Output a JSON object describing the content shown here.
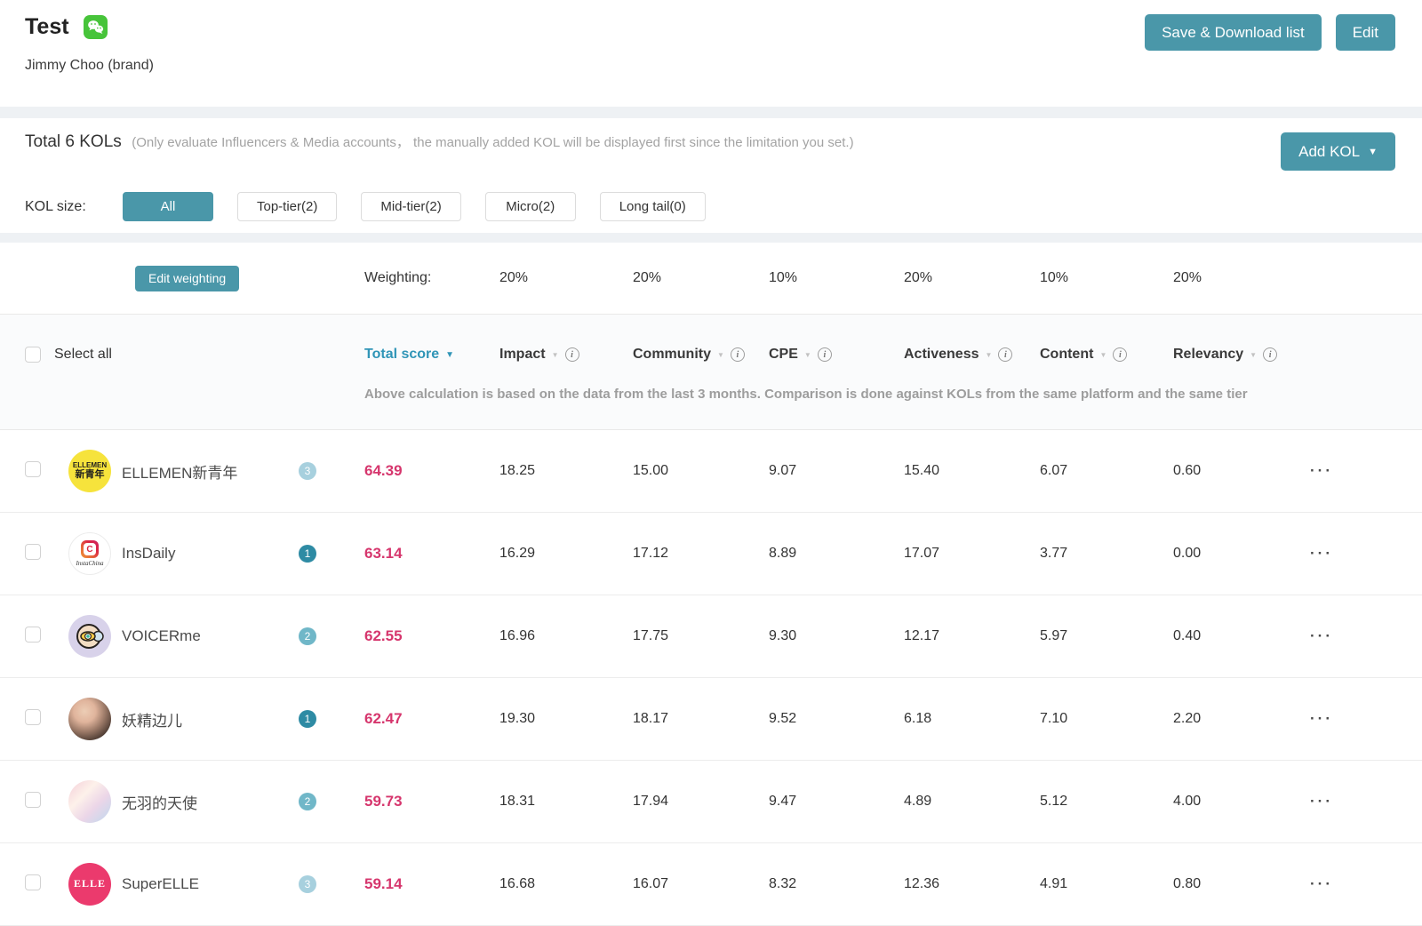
{
  "header": {
    "title": "Test",
    "platform_icon": "wechat",
    "subtitle": "Jimmy Choo (brand)",
    "save_button": "Save & Download list",
    "edit_button": "Edit"
  },
  "kol_summary": {
    "total_label": "Total 6 KOLs",
    "note": "(Only evaluate Influencers & Media accounts，  the manually added KOL will be displayed first since the limitation you set.)",
    "add_kol_button": "Add KOL",
    "size_label": "KOL size:",
    "size_filters": [
      {
        "label": "All",
        "active": true
      },
      {
        "label": "Top-tier(2)",
        "active": false
      },
      {
        "label": "Mid-tier(2)",
        "active": false
      },
      {
        "label": "Micro(2)",
        "active": false
      },
      {
        "label": "Long tail(0)",
        "active": false
      }
    ]
  },
  "weighting": {
    "edit_button": "Edit weighting",
    "label": "Weighting:",
    "values": [
      "20%",
      "20%",
      "10%",
      "20%",
      "10%",
      "20%"
    ]
  },
  "table": {
    "select_all": "Select all",
    "columns": [
      "Total score",
      "Impact",
      "Community",
      "CPE",
      "Activeness",
      "Content",
      "Relevancy"
    ],
    "note": "Above calculation is based on the data from the last 3 months. Comparison is done against KOLs from the same platform and the same tier",
    "rows": [
      {
        "name": "ELLEMEN新青年",
        "tier": "3",
        "avatar": {
          "type": "text",
          "bg": "#f6e33c",
          "fg": "#1f1f1f",
          "lines": [
            "ELLEMEN",
            "新青年"
          ]
        },
        "total_score": "64.39",
        "metrics": [
          "18.25",
          "15.00",
          "9.07",
          "15.40",
          "6.07",
          "0.60"
        ]
      },
      {
        "name": "InsDaily",
        "tier": "1",
        "avatar": {
          "type": "insta",
          "caption": "InstaChina"
        },
        "total_score": "63.14",
        "metrics": [
          "16.29",
          "17.12",
          "8.89",
          "17.07",
          "3.77",
          "0.00"
        ]
      },
      {
        "name": "VOICERme",
        "tier": "2",
        "avatar": {
          "type": "eye",
          "bg": "#d8d2ea"
        },
        "total_score": "62.55",
        "metrics": [
          "16.96",
          "17.75",
          "9.30",
          "12.17",
          "5.97",
          "0.40"
        ]
      },
      {
        "name": "妖精边儿",
        "tier": "1",
        "avatar": {
          "type": "photo",
          "variant": "portrait"
        },
        "total_score": "62.47",
        "metrics": [
          "19.30",
          "18.17",
          "9.52",
          "6.18",
          "7.10",
          "2.20"
        ]
      },
      {
        "name": "无羽的天使",
        "tier": "2",
        "avatar": {
          "type": "photo",
          "variant": "pastel"
        },
        "total_score": "59.73",
        "metrics": [
          "18.31",
          "17.94",
          "9.47",
          "4.89",
          "5.12",
          "4.00"
        ]
      },
      {
        "name": "SuperELLE",
        "tier": "3",
        "avatar": {
          "type": "text",
          "bg": "#eb3a6d",
          "fg": "#ffffff",
          "lines": [
            "ELLE"
          ]
        },
        "total_score": "59.14",
        "metrics": [
          "16.68",
          "16.07",
          "8.32",
          "12.36",
          "4.91",
          "0.80"
        ]
      }
    ]
  },
  "colors": {
    "accent_teal": "#4a97a9",
    "link_teal": "#3095b7",
    "score_pink": "#d6366d",
    "tier_badges": {
      "1": "#2e8ba4",
      "2": "#70b7c8",
      "3": "#a7d0de"
    }
  }
}
